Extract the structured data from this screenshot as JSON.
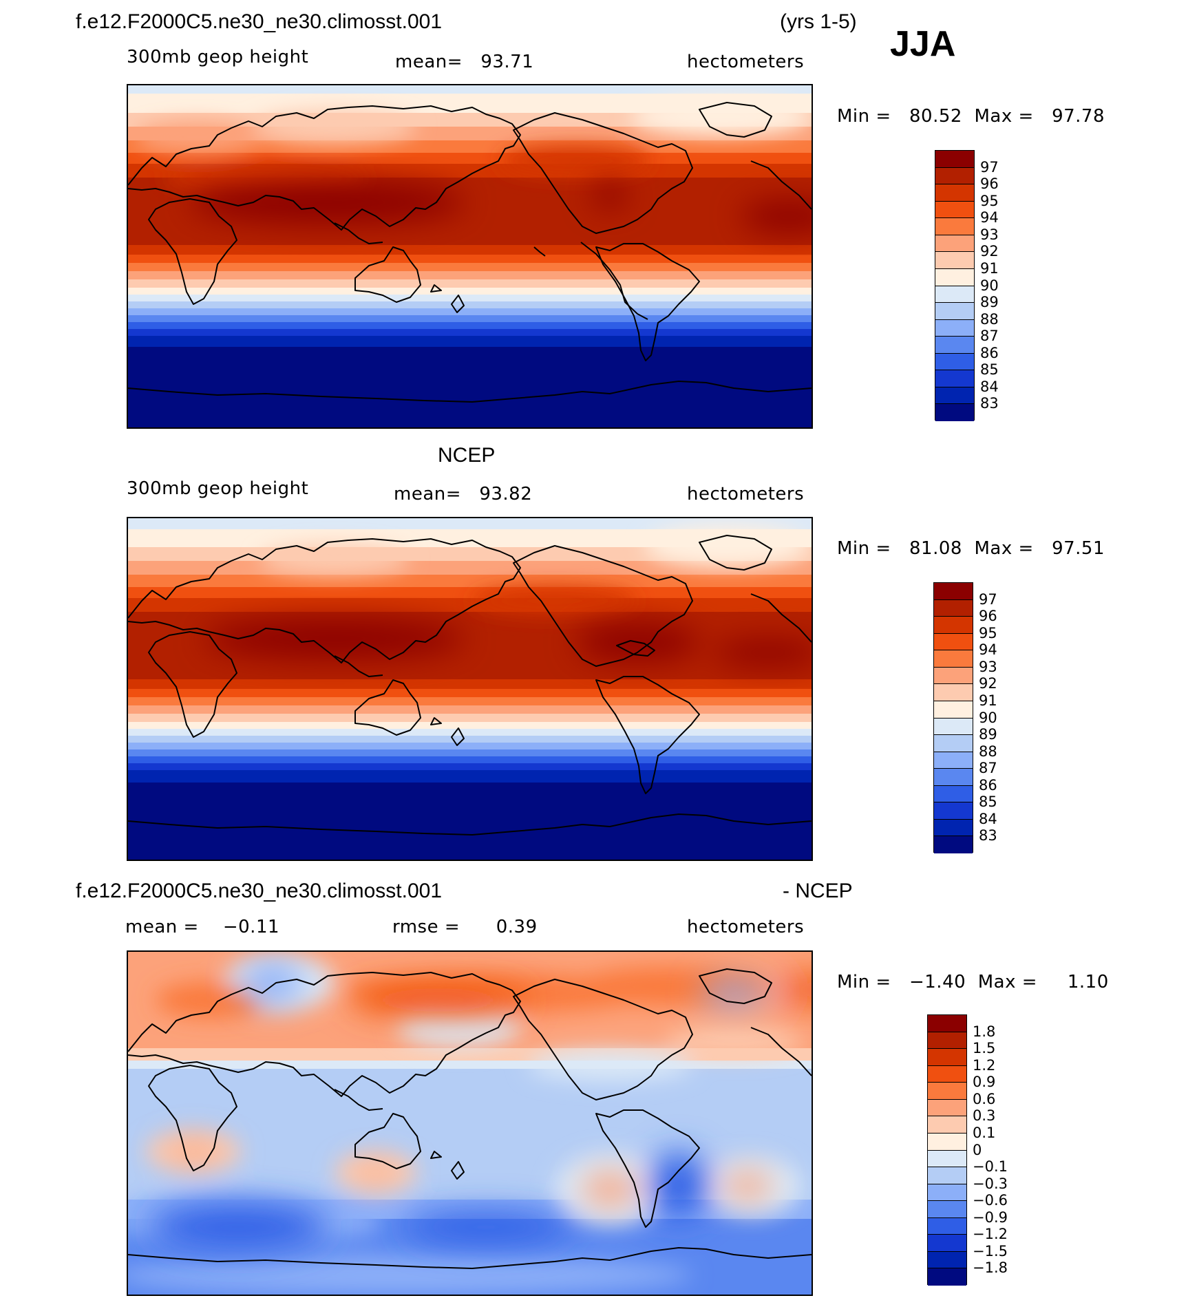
{
  "header": {
    "case_name": "f.e12.F2000C5.ne30_ne30.climosst.001",
    "years": "(yrs 1-5)",
    "season": "JJA"
  },
  "panels": [
    {
      "id": "model",
      "variable": "300mb geop height",
      "stat1_label": "mean=",
      "stat1_value": "93.71",
      "units": "hectometers",
      "min_label": "Min =",
      "min_value": "80.52",
      "max_label": "Max =",
      "max_value": "97.78"
    },
    {
      "id": "obs",
      "title": "NCEP",
      "variable": "300mb geop height",
      "stat1_label": "mean=",
      "stat1_value": "93.82",
      "units": "hectometers",
      "min_label": "Min =",
      "min_value": "81.08",
      "max_label": "Max =",
      "max_value": "97.51"
    },
    {
      "id": "diff",
      "title_left": "f.e12.F2000C5.ne30_ne30.climosst.001",
      "title_right": "- NCEP",
      "stat1_label": "mean =",
      "stat1_value": "−0.11",
      "stat2_label": "rmse =",
      "stat2_value": "0.39",
      "units": "hectometers",
      "min_label": "Min =",
      "min_value": "−1.40",
      "max_label": "Max =",
      "max_value": "1.10"
    }
  ],
  "colorbars": {
    "height": {
      "labels": [
        "97",
        "96",
        "95",
        "94",
        "93",
        "92",
        "91",
        "90",
        "89",
        "88",
        "87",
        "86",
        "85",
        "84",
        "83"
      ],
      "colors": [
        "#8b0000",
        "#b22000",
        "#d43500",
        "#f05010",
        "#fa7a3d",
        "#fca27a",
        "#fdcbb0",
        "#fff0e0",
        "#dce9f7",
        "#b4cdf5",
        "#8caff8",
        "#5a87f0",
        "#2f5ee6",
        "#1438d0",
        "#0024b0",
        "#000a80"
      ]
    },
    "diff": {
      "labels": [
        "1.8",
        "1.5",
        "1.2",
        "0.9",
        "0.6",
        "0.3",
        "0.1",
        "0",
        "−0.1",
        "−0.3",
        "−0.6",
        "−0.9",
        "−1.2",
        "−1.5",
        "−1.8"
      ],
      "colors": [
        "#8b0000",
        "#b22000",
        "#d43500",
        "#f05010",
        "#fa7a3d",
        "#fca27a",
        "#fdcbb0",
        "#fff0e0",
        "#dce9f7",
        "#b4cdf5",
        "#8caff8",
        "#5a87f0",
        "#2f5ee6",
        "#1438d0",
        "#0024b0",
        "#000a80"
      ]
    }
  }
}
